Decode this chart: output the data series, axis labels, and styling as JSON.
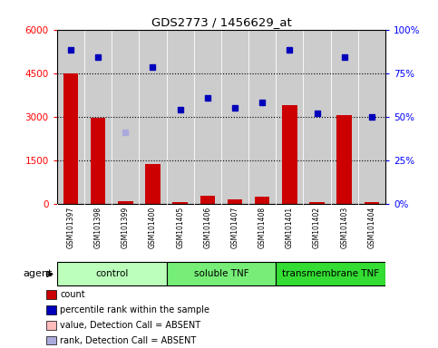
{
  "title": "GDS2773 / 1456629_at",
  "samples": [
    "GSM101397",
    "GSM101398",
    "GSM101399",
    "GSM101400",
    "GSM101405",
    "GSM101406",
    "GSM101407",
    "GSM101408",
    "GSM101401",
    "GSM101402",
    "GSM101403",
    "GSM101404"
  ],
  "groups": [
    {
      "label": "control",
      "color": "#bbffbb",
      "start": 0,
      "end": 3
    },
    {
      "label": "soluble TNF",
      "color": "#77ee77",
      "start": 4,
      "end": 7
    },
    {
      "label": "transmembrane TNF",
      "color": "#33dd33",
      "start": 8,
      "end": 11
    }
  ],
  "count_values": [
    4500,
    2950,
    80,
    1370,
    55,
    280,
    130,
    250,
    3380,
    60,
    3060,
    50
  ],
  "percentile_values": [
    5300,
    5050,
    null,
    4700,
    3250,
    3650,
    3300,
    3500,
    5300,
    3100,
    5050,
    2980
  ],
  "absent_rank_index": 2,
  "absent_rank_value": 2450,
  "left_ylim": [
    0,
    6000
  ],
  "left_yticks": [
    0,
    1500,
    3000,
    4500,
    6000
  ],
  "right_yticks": [
    0,
    25,
    50,
    75,
    100
  ],
  "right_yticklabels": [
    "0%",
    "25%",
    "50%",
    "75%",
    "100%"
  ],
  "bar_color": "#cc0000",
  "dot_color": "#0000bb",
  "absent_rank_color": "#aaaadd",
  "bg_color": "#cccccc",
  "legend_items": [
    {
      "color": "#cc0000",
      "label": "count"
    },
    {
      "color": "#0000bb",
      "label": "percentile rank within the sample"
    },
    {
      "color": "#ffbbbb",
      "label": "value, Detection Call = ABSENT"
    },
    {
      "color": "#aaaadd",
      "label": "rank, Detection Call = ABSENT"
    }
  ]
}
